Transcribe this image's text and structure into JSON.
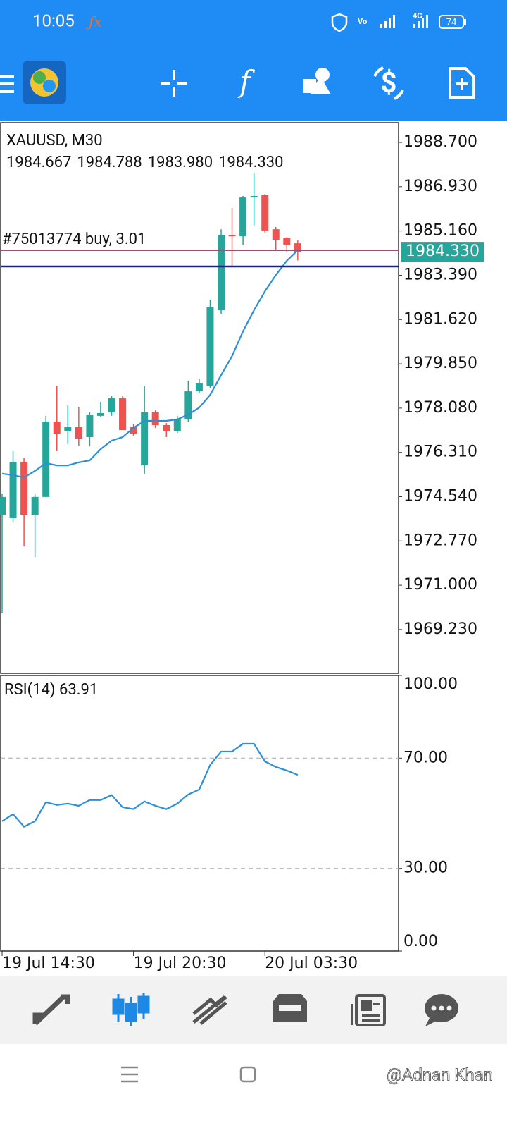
{
  "status_bar": {
    "time": "10:05",
    "network": "4G",
    "battery": "74"
  },
  "chart_data": {
    "type": "candlestick",
    "title": "XAUUSD, M30",
    "ohlc_labels": [
      "1984.667",
      "1984.788",
      "1983.980",
      "1984.330"
    ],
    "x_labels": [
      "19 Jul 14:30",
      null,
      null,
      null,
      null,
      null,
      null,
      null,
      null,
      null,
      null,
      null,
      "19 Jul 20:30",
      null,
      null,
      null,
      null,
      null,
      null,
      null,
      null,
      null,
      null,
      null,
      "20 Jul 03:30",
      null,
      null,
      null
    ],
    "candles": {
      "open": [
        1973.82,
        1973.68,
        1975.93,
        1973.82,
        1974.53,
        1977.54,
        1977.15,
        1977.32,
        1976.92,
        1977.77,
        1977.91,
        1978.47,
        1977.34,
        1975.79,
        1977.91,
        1977.4,
        1977.15,
        1977.63,
        1978.75,
        1978.95,
        1981.99,
        1985.01,
        1984.95,
        1986.5,
        1986.59,
        1985.23,
        1984.87,
        1984.667
      ],
      "high": [
        1974.67,
        1976.36,
        1976.08,
        1974.67,
        1977.77,
        1978.95,
        1978.19,
        1978.13,
        1977.91,
        1978.33,
        1978.56,
        1978.56,
        1977.43,
        1978.95,
        1977.99,
        1977.48,
        1977.77,
        1979.18,
        1979.26,
        1982.42,
        1985.23,
        1986.08,
        1986.56,
        1987.49,
        1986.64,
        1985.32,
        1984.92,
        1984.788
      ],
      "low": [
        1969.88,
        1973.54,
        1972.55,
        1972.13,
        1974.53,
        1976.36,
        1976.64,
        1976.58,
        1976.55,
        1977.71,
        1977.77,
        1977.2,
        1976.98,
        1975.46,
        1977.29,
        1976.92,
        1977.09,
        1977.54,
        1978.67,
        1978.89,
        1981.85,
        1983.74,
        1984.59,
        1985.38,
        1985.09,
        1984.39,
        1984.3,
        1983.98
      ],
      "close": [
        1974.53,
        1975.93,
        1973.82,
        1974.53,
        1977.54,
        1977.06,
        1977.32,
        1976.86,
        1977.82,
        1977.88,
        1978.47,
        1977.2,
        1977.06,
        1977.91,
        1977.4,
        1977.15,
        1977.63,
        1978.75,
        1979.09,
        1982.13,
        1985.01,
        1984.95,
        1986.5,
        1986.56,
        1985.18,
        1984.81,
        1984.59,
        1984.33
      ]
    },
    "up_color": "#26a69a",
    "down_color": "#ef5350",
    "ma": {
      "color": "#2e8fd6",
      "values": [
        1975.46,
        1975.4,
        1975.31,
        1975.57,
        1975.88,
        1975.79,
        1975.79,
        1975.91,
        1975.99,
        1976.44,
        1976.78,
        1976.92,
        1977.29,
        1977.57,
        1977.57,
        1977.57,
        1977.63,
        1977.82,
        1978.1,
        1978.61,
        1979.4,
        1980.16,
        1981.15,
        1981.99,
        1982.75,
        1983.4,
        1983.97,
        1984.39
      ]
    },
    "ylim": [
      1967.48,
      1989.49
    ],
    "yticks": [
      {
        "value": 1988.7,
        "label": "1988.700"
      },
      {
        "value": 1986.93,
        "label": "1986.930"
      },
      {
        "value": 1985.16,
        "label": "1985.160"
      },
      {
        "value": 1983.39,
        "label": "1983.390"
      },
      {
        "value": 1981.62,
        "label": "1981.620"
      },
      {
        "value": 1979.85,
        "label": "1979.850"
      },
      {
        "value": 1978.08,
        "label": "1978.080"
      },
      {
        "value": 1976.31,
        "label": "1976.310"
      },
      {
        "value": 1974.54,
        "label": "1974.540"
      },
      {
        "value": 1972.77,
        "label": "1972.770"
      },
      {
        "value": 1971.0,
        "label": "1971.000"
      },
      {
        "value": 1969.23,
        "label": "1969.230"
      }
    ],
    "bid": {
      "value": 1984.33,
      "label": "1984.330",
      "color": "#e53935"
    },
    "trade": {
      "label": "#75013774 buy, 3.01",
      "value": 1984.39,
      "color": "#1e63d6"
    },
    "level": {
      "value": 1983.74,
      "color": "#1a237e"
    },
    "rsi": {
      "type": "line",
      "title": "RSI(14) 63.91",
      "color": "#2e8fd6",
      "values": [
        47.1,
        49.7,
        45.1,
        47.1,
        54.0,
        53.0,
        53.5,
        52.7,
        54.8,
        54.8,
        56.6,
        52.2,
        51.5,
        54.3,
        52.7,
        51.5,
        53.5,
        56.8,
        58.6,
        67.5,
        72.4,
        72.4,
        75.2,
        75.2,
        68.8,
        66.8,
        65.5,
        63.91
      ],
      "ylim": [
        0,
        100
      ],
      "yticks": [
        {
          "value": 100,
          "label": "100.00"
        },
        {
          "value": 70,
          "label": "70.00"
        },
        {
          "value": 30,
          "label": "30.00"
        },
        {
          "value": 0,
          "label": "0.00"
        }
      ]
    }
  },
  "watermark": "@Adnan Khan"
}
